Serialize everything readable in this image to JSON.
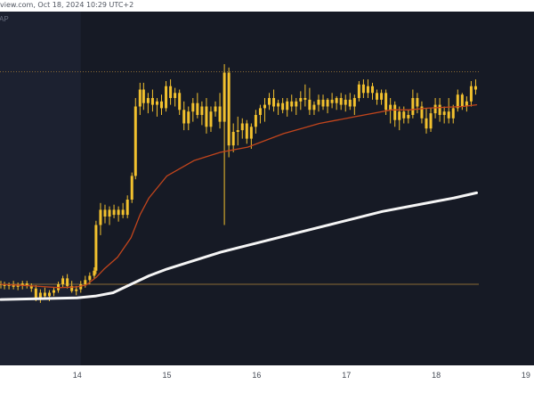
{
  "header": {
    "watermark": "view.com, Oct 18, 2024 10:29 UTC+2",
    "indicator_label": "AP"
  },
  "colors": {
    "background": "#161a25",
    "shaded_region": "#1c2130",
    "candle": "#f2c12e",
    "ema_slow": "#f5f5f5",
    "ema_fast": "#c2451c",
    "reference_lines": "#8a6a35",
    "axis_text": "#444a55"
  },
  "chart_data": {
    "type": "candlestick",
    "x_tick_labels": [
      "14",
      "15",
      "16",
      "17",
      "18",
      "19"
    ],
    "x_ticks_days": [
      14,
      15,
      16,
      17,
      18,
      19
    ],
    "x_range_days": [
      13.14,
      19.09
    ],
    "y_range_price": [
      0,
      400
    ],
    "price_scale_note": "no price axis visible; values are relative chart units (0 = bottom of plot, 400 = top)",
    "grid": false,
    "shaded_region_days": [
      13.14,
      14.04
    ],
    "reference_levels": [
      {
        "value": 331,
        "style": "dotted"
      },
      {
        "value": 80,
        "style": "solid"
      }
    ],
    "series": [
      {
        "kind": "candles",
        "ohlc": [
          [
            13.15,
            80,
            84,
            75,
            80
          ],
          [
            13.19,
            80,
            83,
            74,
            78
          ],
          [
            13.24,
            78,
            82,
            74,
            80
          ],
          [
            13.29,
            80,
            84,
            74,
            77
          ],
          [
            13.34,
            77,
            82,
            73,
            79
          ],
          [
            13.39,
            79,
            84,
            74,
            81
          ],
          [
            13.44,
            81,
            84,
            75,
            78
          ],
          [
            13.49,
            78,
            81,
            71,
            75
          ],
          [
            13.54,
            75,
            79,
            60,
            64
          ],
          [
            13.59,
            64,
            74,
            58,
            70
          ],
          [
            13.64,
            70,
            76,
            63,
            66
          ],
          [
            13.69,
            66,
            73,
            60,
            70
          ],
          [
            13.74,
            70,
            76,
            66,
            73
          ],
          [
            13.79,
            73,
            83,
            70,
            80
          ],
          [
            13.84,
            80,
            90,
            76,
            87
          ],
          [
            13.89,
            87,
            92,
            75,
            78
          ],
          [
            13.94,
            78,
            84,
            70,
            72
          ],
          [
            13.99,
            72,
            78,
            67,
            74
          ],
          [
            14.04,
            74,
            84,
            70,
            80
          ],
          [
            14.09,
            80,
            90,
            76,
            85
          ],
          [
            14.14,
            85,
            94,
            80,
            90
          ],
          [
            14.19,
            90,
            100,
            86,
            96
          ],
          [
            14.21,
            96,
            155,
            92,
            150
          ],
          [
            14.26,
            150,
            176,
            138,
            168
          ],
          [
            14.31,
            168,
            174,
            152,
            160
          ],
          [
            14.36,
            160,
            172,
            150,
            168
          ],
          [
            14.41,
            168,
            174,
            158,
            162
          ],
          [
            14.46,
            162,
            172,
            154,
            168
          ],
          [
            14.51,
            168,
            176,
            158,
            162
          ],
          [
            14.56,
            162,
            185,
            158,
            180
          ],
          [
            14.61,
            180,
            212,
            176,
            208
          ],
          [
            14.65,
            208,
            300,
            204,
            290
          ],
          [
            14.7,
            290,
            318,
            280,
            310
          ],
          [
            14.74,
            310,
            318,
            286,
            294
          ],
          [
            14.79,
            294,
            306,
            282,
            300
          ],
          [
            14.84,
            300,
            310,
            284,
            292
          ],
          [
            14.89,
            292,
            300,
            278,
            296
          ],
          [
            14.94,
            296,
            304,
            280,
            288
          ],
          [
            14.99,
            288,
            320,
            284,
            314
          ],
          [
            15.04,
            314,
            322,
            292,
            300
          ],
          [
            15.09,
            300,
            312,
            290,
            306
          ],
          [
            15.14,
            306,
            310,
            280,
            286
          ],
          [
            15.19,
            286,
            296,
            262,
            270
          ],
          [
            15.24,
            270,
            290,
            262,
            284
          ],
          [
            15.29,
            284,
            300,
            272,
            294
          ],
          [
            15.34,
            294,
            306,
            276,
            280
          ],
          [
            15.39,
            280,
            296,
            268,
            290
          ],
          [
            15.44,
            290,
            300,
            258,
            266
          ],
          [
            15.49,
            266,
            290,
            260,
            284
          ],
          [
            15.54,
            284,
            296,
            278,
            290
          ],
          [
            15.59,
            290,
            306,
            264,
            272
          ],
          [
            15.64,
            272,
            340,
            150,
            330
          ],
          [
            15.69,
            330,
            336,
            230,
            244
          ],
          [
            15.74,
            244,
            270,
            236,
            260
          ],
          [
            15.79,
            260,
            278,
            244,
            262
          ],
          [
            15.84,
            262,
            276,
            252,
            270
          ],
          [
            15.89,
            270,
            274,
            246,
            252
          ],
          [
            15.94,
            252,
            270,
            240,
            266
          ],
          [
            15.99,
            266,
            286,
            258,
            280
          ],
          [
            16.04,
            280,
            292,
            270,
            288
          ],
          [
            16.09,
            288,
            300,
            272,
            292
          ],
          [
            16.14,
            292,
            306,
            286,
            300
          ],
          [
            16.19,
            300,
            310,
            284,
            290
          ],
          [
            16.24,
            290,
            298,
            280,
            294
          ],
          [
            16.29,
            294,
            300,
            282,
            286
          ],
          [
            16.34,
            286,
            300,
            278,
            296
          ],
          [
            16.39,
            296,
            304,
            284,
            290
          ],
          [
            16.44,
            290,
            300,
            280,
            296
          ],
          [
            16.49,
            296,
            308,
            286,
            300
          ],
          [
            16.54,
            300,
            316,
            290,
            298
          ],
          [
            16.59,
            298,
            312,
            280,
            286
          ],
          [
            16.64,
            286,
            296,
            280,
            292
          ],
          [
            16.69,
            292,
            304,
            284,
            298
          ],
          [
            16.74,
            298,
            304,
            286,
            290
          ],
          [
            16.79,
            290,
            300,
            282,
            298
          ],
          [
            16.84,
            298,
            306,
            288,
            294
          ],
          [
            16.89,
            294,
            302,
            286,
            300
          ],
          [
            16.94,
            300,
            306,
            286,
            292
          ],
          [
            16.99,
            292,
            304,
            284,
            298
          ],
          [
            17.04,
            298,
            306,
            286,
            290
          ],
          [
            17.09,
            290,
            304,
            280,
            300
          ],
          [
            17.14,
            300,
            320,
            296,
            316
          ],
          [
            17.19,
            316,
            322,
            300,
            306
          ],
          [
            17.24,
            306,
            322,
            300,
            314
          ],
          [
            17.29,
            314,
            318,
            298,
            306
          ],
          [
            17.34,
            306,
            310,
            292,
            298
          ],
          [
            17.39,
            298,
            310,
            292,
            306
          ],
          [
            17.44,
            306,
            310,
            280,
            286
          ],
          [
            17.49,
            286,
            300,
            270,
            292
          ],
          [
            17.54,
            292,
            296,
            266,
            274
          ],
          [
            17.59,
            274,
            290,
            262,
            284
          ],
          [
            17.64,
            284,
            290,
            270,
            276
          ],
          [
            17.69,
            276,
            286,
            270,
            280
          ],
          [
            17.74,
            280,
            310,
            276,
            300
          ],
          [
            17.79,
            300,
            306,
            282,
            290
          ],
          [
            17.84,
            290,
            296,
            270,
            276
          ],
          [
            17.89,
            276,
            288,
            258,
            264
          ],
          [
            17.94,
            264,
            288,
            260,
            282
          ],
          [
            17.99,
            282,
            300,
            276,
            292
          ],
          [
            18.04,
            292,
            300,
            272,
            280
          ],
          [
            18.09,
            280,
            290,
            270,
            284
          ],
          [
            18.14,
            284,
            300,
            270,
            276
          ],
          [
            18.19,
            276,
            292,
            270,
            288
          ],
          [
            18.24,
            288,
            310,
            284,
            304
          ],
          [
            18.29,
            304,
            306,
            286,
            290
          ],
          [
            18.34,
            290,
            302,
            284,
            296
          ],
          [
            18.39,
            296,
            320,
            290,
            314
          ],
          [
            18.44,
            314,
            322,
            304,
            310
          ]
        ]
      },
      {
        "kind": "line",
        "color_key": "ema_fast",
        "points": [
          [
            13.15,
            80
          ],
          [
            13.5,
            78
          ],
          [
            13.8,
            76
          ],
          [
            14.0,
            77
          ],
          [
            14.1,
            79
          ],
          [
            14.21,
            88
          ],
          [
            14.3,
            98
          ],
          [
            14.45,
            112
          ],
          [
            14.6,
            135
          ],
          [
            14.7,
            162
          ],
          [
            14.8,
            182
          ],
          [
            15.0,
            208
          ],
          [
            15.3,
            226
          ],
          [
            15.6,
            236
          ],
          [
            15.9,
            242
          ],
          [
            16.1,
            250
          ],
          [
            16.3,
            258
          ],
          [
            16.5,
            264
          ],
          [
            16.7,
            270
          ],
          [
            16.9,
            274
          ],
          [
            17.1,
            278
          ],
          [
            17.3,
            282
          ],
          [
            17.5,
            286
          ],
          [
            17.7,
            286
          ],
          [
            17.9,
            288
          ],
          [
            18.1,
            289
          ],
          [
            18.3,
            290
          ],
          [
            18.45,
            292
          ]
        ]
      },
      {
        "kind": "line",
        "color_key": "ema_slow",
        "points": [
          [
            13.15,
            62
          ],
          [
            13.6,
            63
          ],
          [
            14.0,
            64
          ],
          [
            14.2,
            66
          ],
          [
            14.4,
            70
          ],
          [
            14.6,
            80
          ],
          [
            14.8,
            90
          ],
          [
            15.0,
            98
          ],
          [
            15.3,
            108
          ],
          [
            15.6,
            118
          ],
          [
            15.9,
            126
          ],
          [
            16.2,
            134
          ],
          [
            16.5,
            142
          ],
          [
            16.8,
            150
          ],
          [
            17.1,
            158
          ],
          [
            17.4,
            166
          ],
          [
            17.7,
            172
          ],
          [
            18.0,
            178
          ],
          [
            18.2,
            182
          ],
          [
            18.45,
            188
          ]
        ]
      }
    ]
  }
}
